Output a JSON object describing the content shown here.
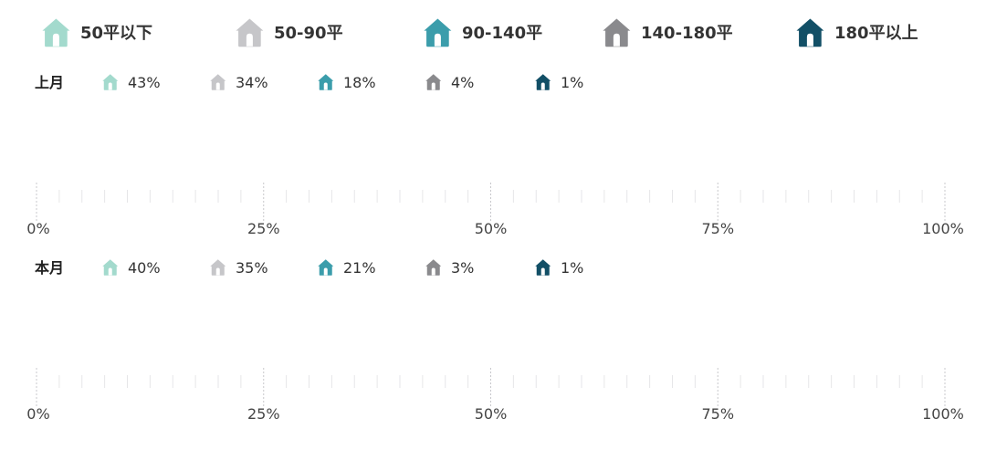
{
  "chart_data": {
    "type": "pictograph",
    "units_total": 10,
    "legend": [
      {
        "label": "50平以下",
        "color": "#a3dacd"
      },
      {
        "label": "50-90平",
        "color": "#c6c6c9"
      },
      {
        "label": "90-140平",
        "color": "#3b9dab"
      },
      {
        "label": "140-180平",
        "color": "#8a8a8d"
      },
      {
        "label": "180平以上",
        "color": "#124f66"
      }
    ],
    "rows": [
      {
        "label": "上月",
        "values": [
          43,
          34,
          18,
          4,
          1
        ],
        "value_labels": [
          "43%",
          "34%",
          "18%",
          "4%",
          "1%"
        ]
      },
      {
        "label": "本月",
        "values": [
          40,
          35,
          21,
          3,
          1
        ],
        "value_labels": [
          "40%",
          "35%",
          "21%",
          "3%",
          "1%"
        ]
      }
    ],
    "axis": {
      "ticks": [
        0,
        25,
        50,
        75,
        100
      ],
      "tick_labels": [
        "0%",
        "25%",
        "50%",
        "75%",
        "100%"
      ]
    }
  }
}
